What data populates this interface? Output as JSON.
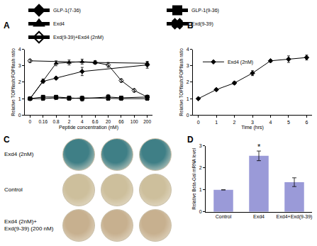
{
  "chart_data": [
    {
      "panel": "A",
      "type": "line",
      "x_label": "Peptide concentration (nM)",
      "y_label": "Relative TOPflash:FOPflash ratio",
      "categories": [
        "0",
        "0.16",
        "0.8",
        "2",
        "4",
        "6.6",
        "20",
        "66",
        "100",
        "200"
      ],
      "ylim": [
        0,
        4
      ],
      "yticks": [
        0,
        1,
        2,
        3,
        4
      ],
      "grid": false,
      "legend": "top",
      "series": [
        {
          "name": "GLP-1(7-36)",
          "color": "#000000",
          "marker": "diamond",
          "line_style": "solid",
          "values": [
            1,
            2.05,
            2.25,
            null,
            2.65,
            null,
            null,
            null,
            null,
            3.05
          ],
          "errors": [
            0,
            0.1,
            0.08,
            null,
            0.25,
            null,
            null,
            null,
            null,
            0.2
          ]
        },
        {
          "name": "GLP-1(9-36)",
          "color": "#000000",
          "marker": "square",
          "line_style": "solid",
          "values": [
            1,
            1.1,
            1.1,
            1.05,
            1.0,
            null,
            1.1,
            1.05,
            null,
            1.1
          ],
          "errors": [
            0,
            0.1,
            0.1,
            0.1,
            0.15,
            null,
            0.15,
            0.1,
            null,
            0.1
          ]
        },
        {
          "name": "Exd4",
          "color": "#000000",
          "marker": "triangle-up",
          "line_style": "solid",
          "values": [
            1,
            2.1,
            3.15,
            3.2,
            3.25,
            3.2,
            null,
            null,
            null,
            3.15
          ],
          "errors": [
            0,
            0.1,
            0.15,
            0.15,
            0.15,
            0.1,
            null,
            null,
            null,
            0.1
          ]
        },
        {
          "name": "Exd(9-39)",
          "color": "#000000",
          "marker": "x",
          "line_style": "solid",
          "values": [
            1,
            1.0,
            1.05,
            1.0,
            1.05,
            null,
            1.0,
            1.0,
            null,
            1.0
          ],
          "errors": [
            0,
            0.1,
            0.1,
            0.1,
            0.1,
            null,
            0.1,
            0.1,
            null,
            0.1
          ]
        },
        {
          "name": "Exd(9-39)+Exd4 (2nM)",
          "color": "#000000",
          "marker": "diamond-open",
          "line_style": "solid",
          "values": [
            3.3,
            null,
            null,
            null,
            null,
            3.2,
            3.05,
            2.1,
            1.5,
            1.1
          ],
          "errors": [
            0.1,
            null,
            null,
            null,
            null,
            0.1,
            0.15,
            0.1,
            0.1,
            0.1
          ]
        }
      ]
    },
    {
      "panel": "B",
      "type": "line",
      "x_label": "Time (hrs)",
      "y_label": "Relative TOPflash:FOPflash ratio",
      "x": [
        0,
        1,
        2,
        3,
        4,
        5,
        6
      ],
      "xlim": [
        -0.3,
        6.3
      ],
      "xticks": [
        0,
        1,
        2,
        3,
        4,
        5,
        6
      ],
      "ylim": [
        0,
        4
      ],
      "yticks": [
        0,
        1,
        2,
        3,
        4
      ],
      "grid": false,
      "legend": "top left",
      "series": [
        {
          "name": "Exd4 (2nM)",
          "color": "#000000",
          "marker": "diamond",
          "line_style": "solid",
          "values": [
            1,
            1.55,
            1.95,
            2.55,
            3.3,
            3.4,
            3.5
          ],
          "errors": [
            0,
            0.05,
            0.08,
            0.15,
            0.05,
            0.2,
            0.15
          ]
        }
      ]
    },
    {
      "panel": "C",
      "type": "image",
      "rows": [
        {
          "label": [
            "Exd4 (2nM)"
          ],
          "color": "#3f7f86"
        },
        {
          "label": [
            "Control"
          ],
          "color": "#cdbf9c"
        },
        {
          "label": [
            "Exd4 (2nM)+",
            "Exd(9-39) (200 nM)"
          ],
          "color": "#c7b08f"
        }
      ]
    },
    {
      "panel": "D",
      "type": "bar",
      "y_label": "Relative Beta-Gal mRNA level",
      "categories": [
        "Control",
        "Exd4",
        "Exd4+Exd(9-39)"
      ],
      "values": [
        1,
        2.55,
        1.35
      ],
      "errors": [
        0,
        0.22,
        0.2
      ],
      "color": "#9a9ad8",
      "ylim": [
        0,
        3
      ],
      "yticks": [
        0,
        1,
        2,
        3
      ],
      "grid": false,
      "annotations": [
        {
          "category": "Exd4",
          "text": "*"
        }
      ]
    }
  ]
}
